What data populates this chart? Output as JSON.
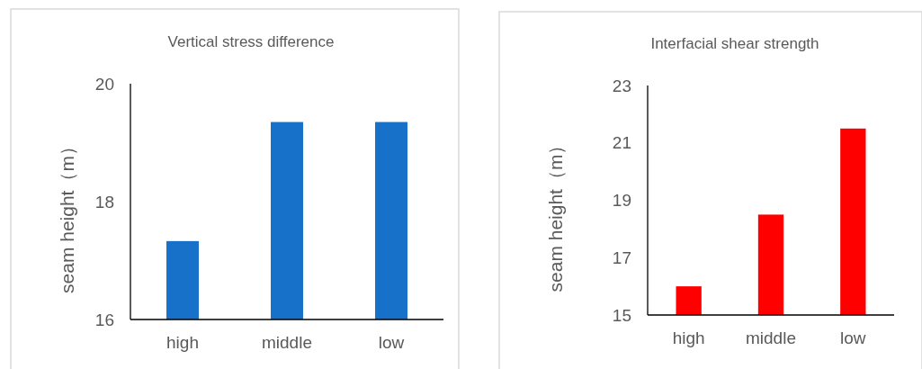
{
  "chart_data": [
    {
      "type": "bar",
      "title": "Vertical stress difference",
      "ylabel": "seam height（m）",
      "categories": [
        "high",
        "middle",
        "low"
      ],
      "values": [
        17.33,
        19.35,
        19.35
      ],
      "color": "#1771c8",
      "ylim": [
        16,
        20
      ],
      "yticks": [
        16,
        18,
        20
      ]
    },
    {
      "type": "bar",
      "title": "Interfacial shear strength",
      "ylabel": "seam height（m）",
      "categories": [
        "high",
        "middle",
        "low"
      ],
      "values": [
        16.0,
        18.5,
        21.5
      ],
      "color": "#ff0000",
      "ylim": [
        15,
        23
      ],
      "yticks": [
        15,
        17,
        19,
        21,
        23
      ]
    }
  ]
}
